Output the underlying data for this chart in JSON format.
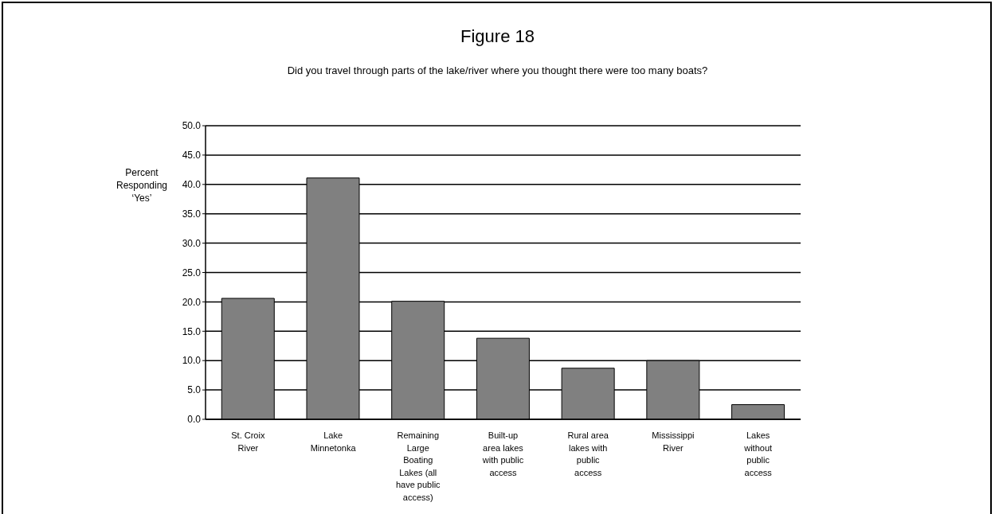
{
  "chart_data": {
    "type": "bar",
    "title": "Figure 18",
    "subtitle": "Did you travel through parts of the lake/river where you thought there were too many boats?",
    "ylabel": "Percent Responding ‘Yes’",
    "categories": [
      "St. Croix River",
      "Lake Minnetonka",
      "Remaining Large Boating Lakes (all have public access)",
      "Built-up area lakes with public access",
      "Rural area lakes with public access",
      "Mississippi River",
      "Lakes without public access"
    ],
    "values": [
      20.6,
      41.1,
      20.1,
      13.8,
      8.7,
      10.0,
      2.5
    ],
    "color": "#808080",
    "ylim": [
      0,
      50
    ],
    "yticks": [
      {
        "value": 0,
        "label": "0.0"
      },
      {
        "value": 5,
        "label": "5.0"
      },
      {
        "value": 10,
        "label": "10.0"
      },
      {
        "value": 15,
        "label": "15.0"
      },
      {
        "value": 20,
        "label": "20.0"
      },
      {
        "value": 25,
        "label": "25.0"
      },
      {
        "value": 30,
        "label": "30.0"
      },
      {
        "value": 35,
        "label": "35.0"
      },
      {
        "value": 40,
        "label": "40.0"
      },
      {
        "value": 45,
        "label": "45.0"
      },
      {
        "value": 50,
        "label": "50.0"
      }
    ],
    "grid": "y"
  }
}
